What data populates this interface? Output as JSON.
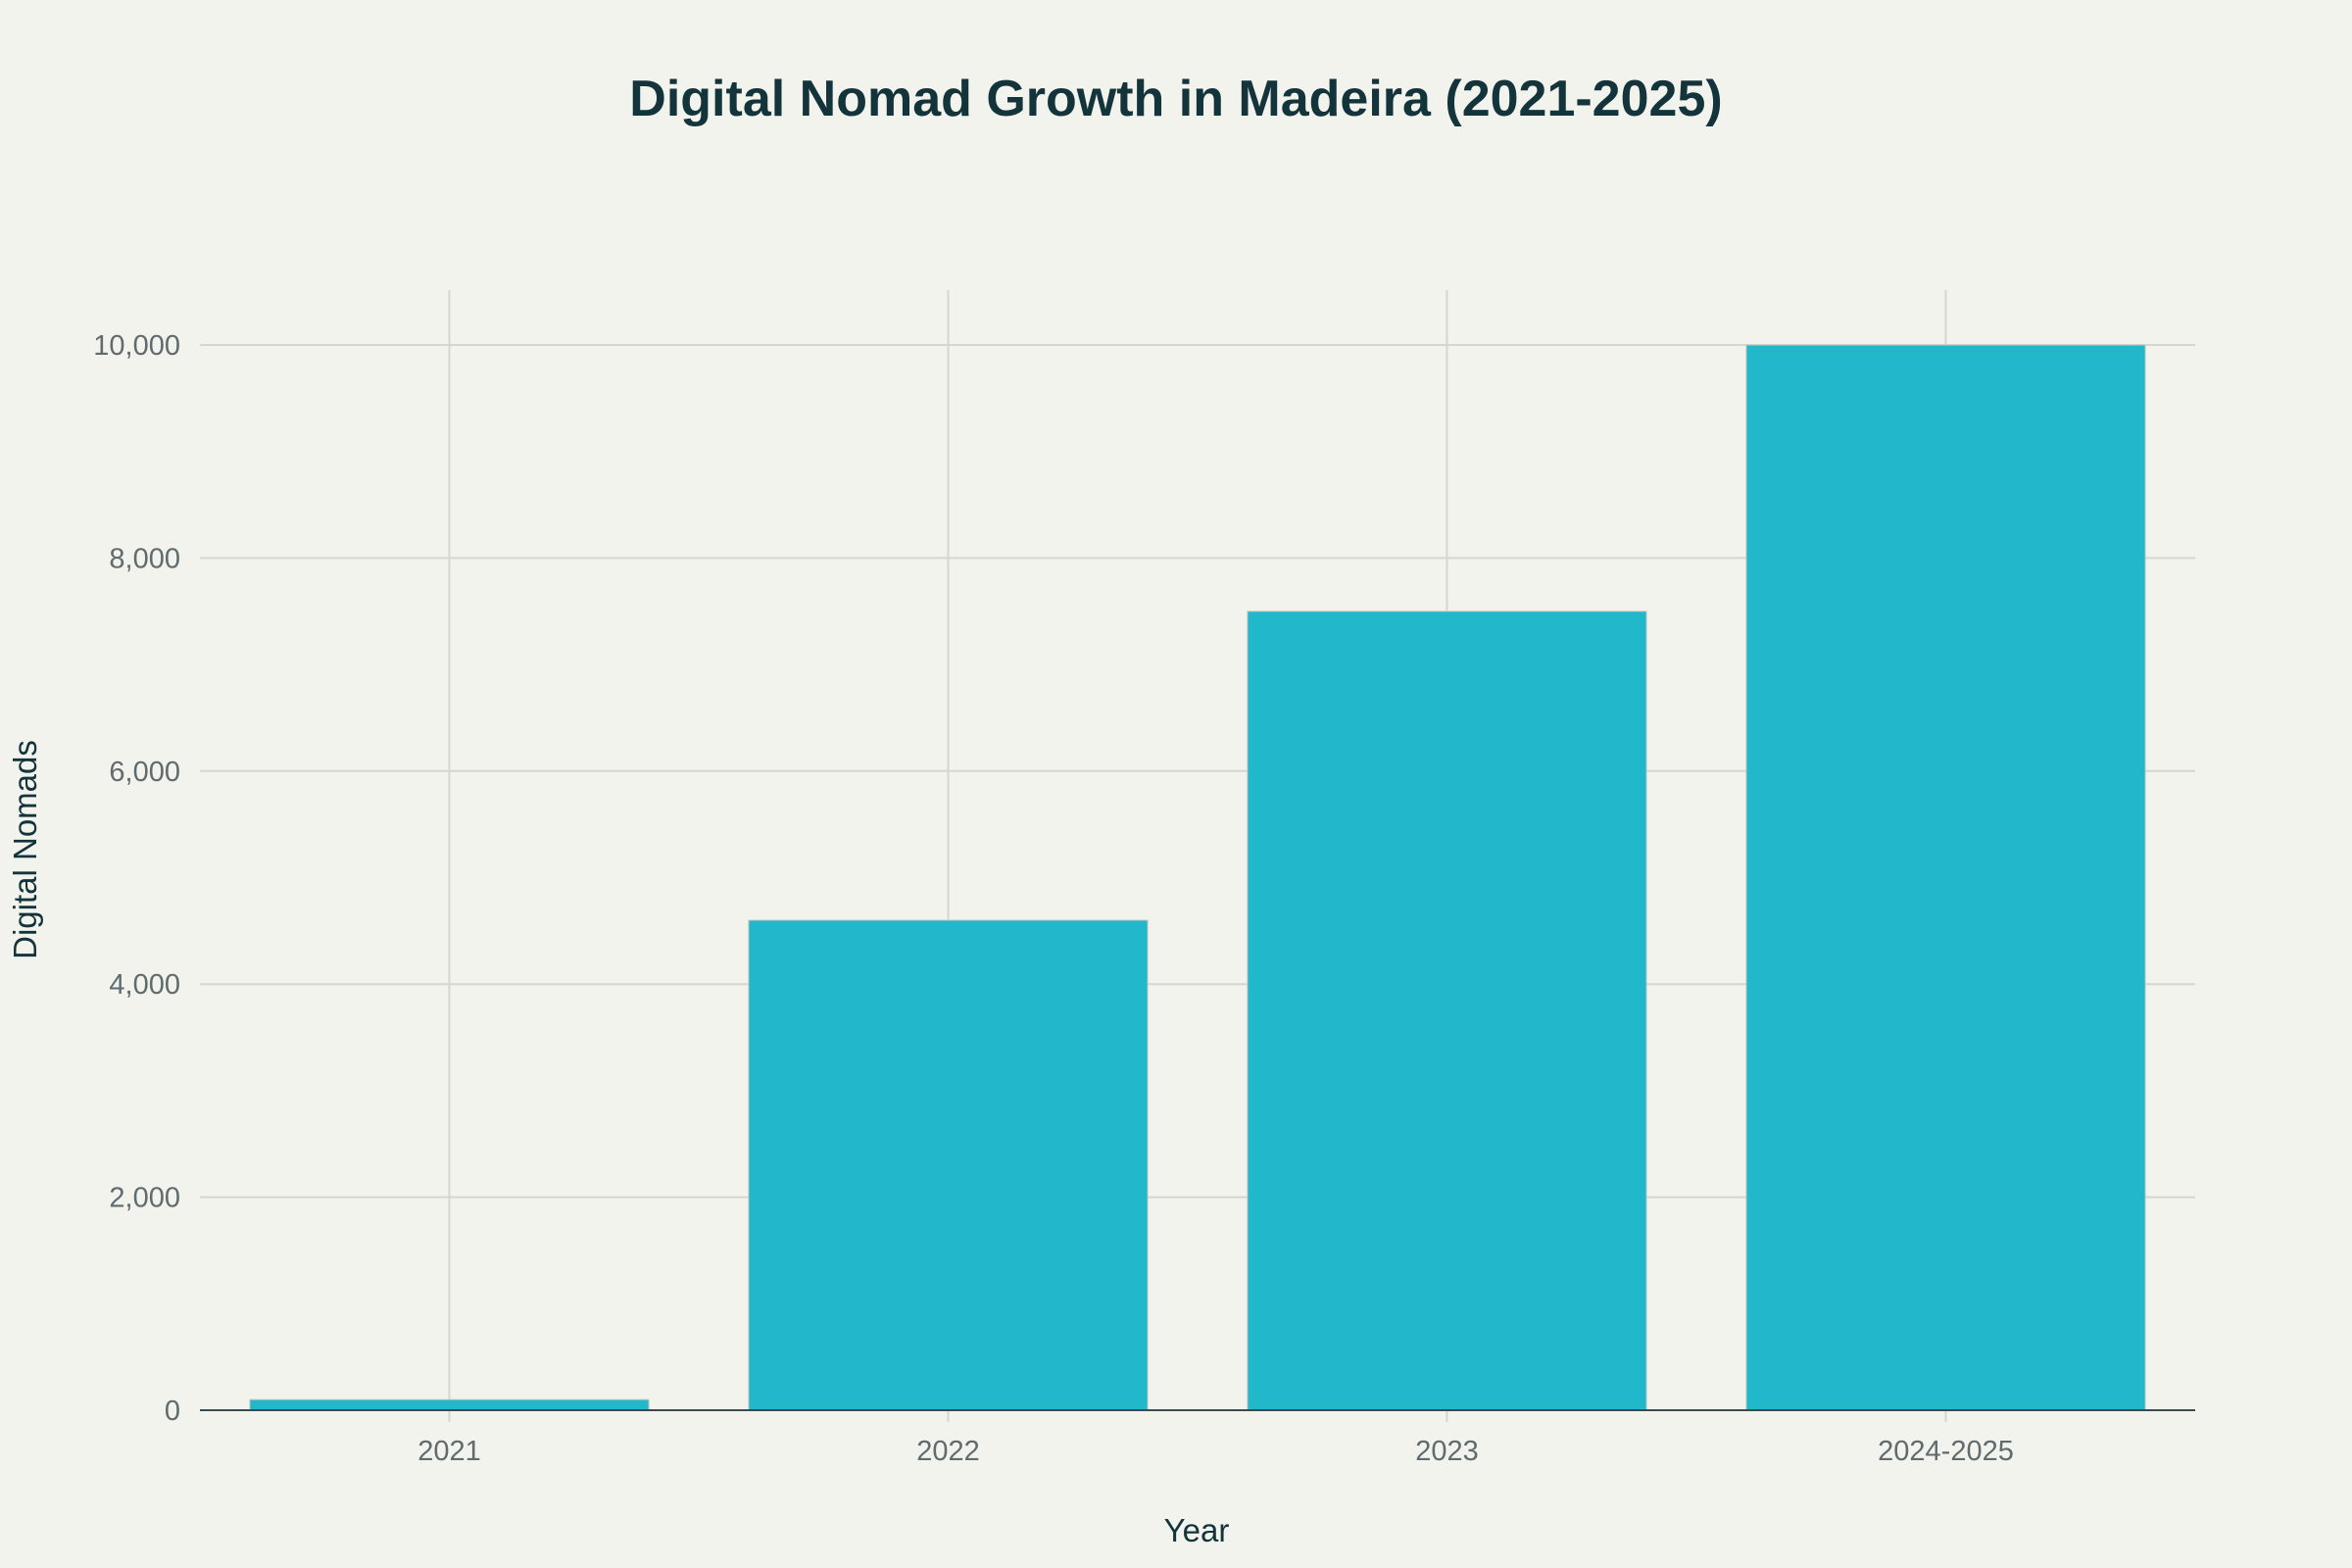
{
  "chart_data": {
    "type": "bar",
    "title": "Digital Nomad Growth in Madeira (2021-2025)",
    "xlabel": "Year",
    "ylabel": "Digital Nomads",
    "categories": [
      "2021",
      "2022",
      "2023",
      "2024-2025"
    ],
    "values": [
      100,
      4600,
      7500,
      10000
    ],
    "ylim": [
      0,
      10500
    ],
    "yticks": [
      0,
      2000,
      4000,
      6000,
      8000,
      10000
    ],
    "ytick_labels": [
      "0",
      "2,000",
      "4,000",
      "6,000",
      "8,000",
      "10,000"
    ],
    "grid": true,
    "legend": "none",
    "colors": {
      "bar": "#21b8cc",
      "background": "#f3f3ee",
      "title": "#13343b"
    }
  }
}
